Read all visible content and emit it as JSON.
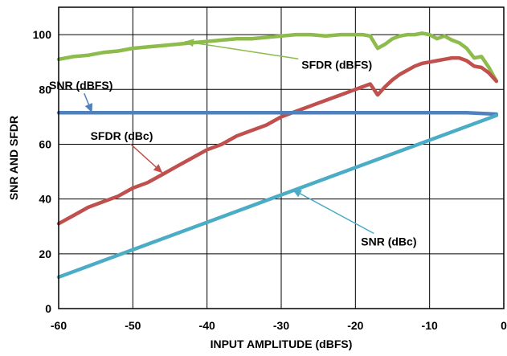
{
  "chart_data": {
    "type": "line",
    "xlabel": "INPUT AMPLITUDE (dBFS)",
    "ylabel": "SNR AND SFDR",
    "xlim": [
      -60,
      0
    ],
    "ylim": [
      0,
      110
    ],
    "xticks": [
      -60,
      -50,
      -40,
      -30,
      -20,
      -10,
      0
    ],
    "yticks": [
      0,
      20,
      40,
      60,
      80,
      100
    ],
    "grid": true,
    "series": [
      {
        "name": "SFDR (dBFS)",
        "color": "#8dbb4c",
        "x": [
          -60,
          -58,
          -56,
          -54,
          -52,
          -50,
          -48,
          -46,
          -44,
          -42,
          -40,
          -38,
          -36,
          -34,
          -32,
          -30,
          -28,
          -26,
          -24,
          -22,
          -20,
          -19,
          -18,
          -17,
          -16,
          -15,
          -14,
          -13,
          -12,
          -11,
          -10,
          -9,
          -8,
          -7,
          -6,
          -5,
          -4,
          -3,
          -2,
          -1
        ],
        "y": [
          91,
          92,
          92.5,
          93.5,
          94,
          95,
          95.5,
          96,
          96.5,
          97,
          97.5,
          98,
          98.5,
          98.5,
          99,
          99.5,
          100,
          100,
          99.5,
          100,
          100,
          100,
          99.5,
          95,
          96.5,
          98.5,
          99.5,
          100,
          100,
          100.5,
          100,
          98.5,
          99.5,
          98,
          97,
          95,
          91.5,
          92,
          88,
          83
        ]
      },
      {
        "name": "SFDR (dBc)",
        "color": "#c0504d",
        "x": [
          -60,
          -58,
          -56,
          -54,
          -52,
          -50,
          -48,
          -46,
          -44,
          -42,
          -40,
          -38,
          -36,
          -34,
          -32,
          -30,
          -28,
          -26,
          -24,
          -22,
          -20,
          -19,
          -18,
          -17,
          -16,
          -15,
          -14,
          -13,
          -12,
          -11,
          -10,
          -9,
          -8,
          -7,
          -6,
          -5,
          -4,
          -3,
          -2,
          -1
        ],
        "y": [
          31,
          34,
          37,
          39,
          41,
          44,
          46,
          49,
          52,
          55,
          58,
          60,
          63,
          65,
          67,
          70,
          72,
          74,
          76,
          78,
          80,
          81,
          82,
          78,
          81,
          83.5,
          85.5,
          87,
          88.5,
          89.5,
          90,
          90.5,
          91,
          91.5,
          91.5,
          90.5,
          88.5,
          88,
          86,
          83
        ]
      },
      {
        "name": "SNR (dBFS)",
        "color": "#4f81bd",
        "x": [
          -60,
          -50,
          -40,
          -30,
          -20,
          -10,
          -5,
          -1
        ],
        "y": [
          71.5,
          71.5,
          71.5,
          71.5,
          71.5,
          71.5,
          71.5,
          71
        ]
      },
      {
        "name": "SNR (dBc)",
        "color": "#4bacc6",
        "x": [
          -60,
          -1
        ],
        "y": [
          11.5,
          70.5
        ]
      }
    ],
    "annotations": [
      {
        "text": "SFDR (dBFS)",
        "label_x": -22.5,
        "label_y": 89,
        "arrow_to_x": -43,
        "arrow_to_y": 97.5,
        "color": "#8dbb4c"
      },
      {
        "text": "SNR (dBFS)",
        "label_x": -57,
        "label_y": 81.5,
        "arrow_to_x": -55.5,
        "arrow_to_y": 71.5,
        "color": "#4f81bd"
      },
      {
        "text": "SFDR (dBc)",
        "label_x": -51.5,
        "label_y": 63,
        "arrow_to_x": -46,
        "arrow_to_y": 49.5,
        "color": "#c0504d"
      },
      {
        "text": "SNR (dBc)",
        "label_x": -15.5,
        "label_y": 24.5,
        "arrow_to_x": -28.5,
        "arrow_to_y": 43.5,
        "color": "#4bacc6"
      }
    ]
  }
}
